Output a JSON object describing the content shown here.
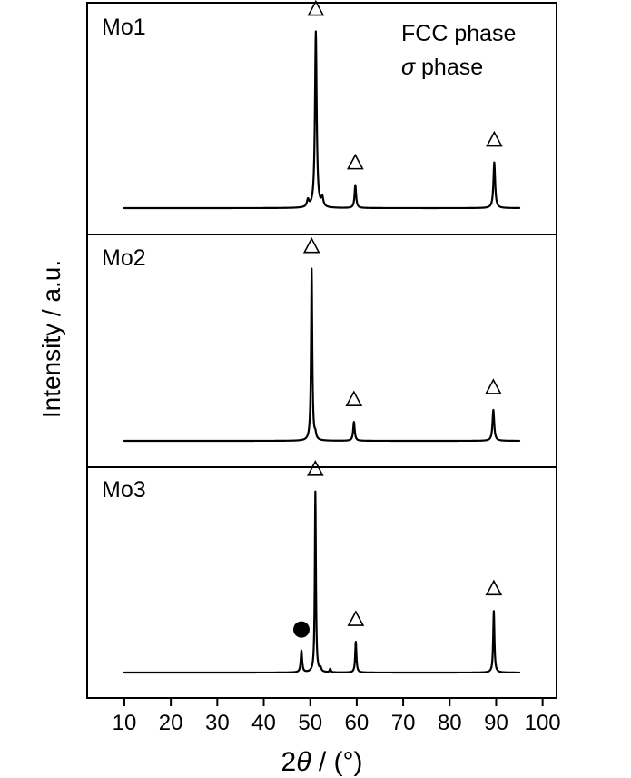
{
  "chart_data": {
    "type": "line",
    "xlabel_prefix": "2",
    "xlabel_symbol": "θ",
    "xlabel_unit": " / (°)",
    "ylabel": "Intensity / a.u.",
    "xlim": [
      2,
      103
    ],
    "xticks": [
      10,
      20,
      30,
      40,
      50,
      60,
      70,
      80,
      90,
      100
    ],
    "legend": {
      "position": "top-right",
      "entries": [
        {
          "marker": "triangle-open",
          "label": "FCC phase",
          "symbol": "",
          "text": "FCC phase"
        },
        {
          "marker": "circle-filled",
          "label": "σ phase",
          "symbol": "σ",
          "text": " phase"
        }
      ]
    },
    "series": [
      {
        "name": "Mo1",
        "peaks": [
          {
            "x": 49.5,
            "h": 0.04,
            "w": 0.25
          },
          {
            "x": 51.2,
            "h": 1.0,
            "w": 0.22
          },
          {
            "x": 52.6,
            "h": 0.05,
            "w": 0.25
          },
          {
            "x": 59.7,
            "h": 0.13,
            "w": 0.2
          },
          {
            "x": 89.6,
            "h": 0.26,
            "w": 0.22
          }
        ],
        "markers": [
          {
            "x": 51.2,
            "type": "fcc"
          },
          {
            "x": 59.7,
            "type": "fcc"
          },
          {
            "x": 89.6,
            "type": "fcc"
          }
        ]
      },
      {
        "name": "Mo2",
        "peaks": [
          {
            "x": 50.3,
            "h": 1.0,
            "w": 0.16
          },
          {
            "x": 51.1,
            "h": 0.03,
            "w": 0.2
          },
          {
            "x": 59.4,
            "h": 0.11,
            "w": 0.2
          },
          {
            "x": 89.4,
            "h": 0.18,
            "w": 0.22
          }
        ],
        "markers": [
          {
            "x": 50.3,
            "type": "fcc"
          },
          {
            "x": 59.4,
            "type": "fcc"
          },
          {
            "x": 89.4,
            "type": "fcc"
          }
        ]
      },
      {
        "name": "Mo3",
        "peaks": [
          {
            "x": 48.1,
            "h": 0.12,
            "w": 0.18
          },
          {
            "x": 51.1,
            "h": 1.0,
            "w": 0.14
          },
          {
            "x": 52.2,
            "h": 0.02,
            "w": 0.2
          },
          {
            "x": 54.3,
            "h": 0.02,
            "w": 0.15
          },
          {
            "x": 59.8,
            "h": 0.17,
            "w": 0.16
          },
          {
            "x": 89.5,
            "h": 0.34,
            "w": 0.16
          }
        ],
        "markers": [
          {
            "x": 48.1,
            "type": "sigma"
          },
          {
            "x": 51.1,
            "type": "fcc"
          },
          {
            "x": 59.8,
            "type": "fcc"
          },
          {
            "x": 89.5,
            "type": "fcc"
          }
        ]
      }
    ],
    "data_range": [
      10,
      95
    ]
  }
}
